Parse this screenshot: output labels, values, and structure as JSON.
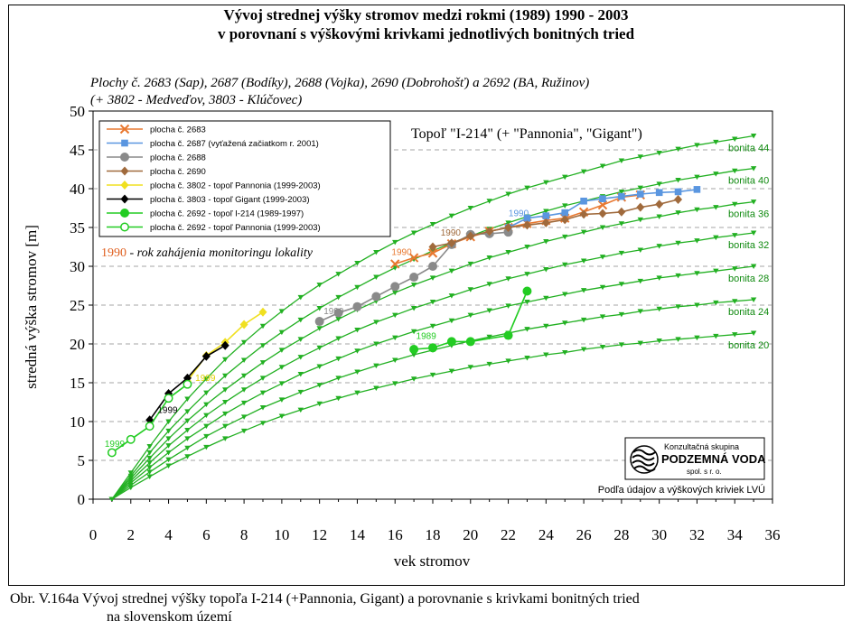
{
  "title_lines": [
    "Vývoj strednej výšky stromov medzi rokmi (1989) 1990 - 2003",
    "v porovnaní s výškovými krivkami jednotlivých bonitných tried"
  ],
  "subtitle_lines": [
    "Plochy č. 2683 (Sap), 2687 (Bodíky), 2688 (Vojka), 2690 (Dobrohošť) a 2692 (BA, Ružinov)",
    "(+  3802 - Medveďov, 3803 - Klúčovec)"
  ],
  "inner_title": "Topoľ \"I-214\" (+ \"Pannonia\", \"Gigant\")",
  "monitoring_note": {
    "year": "1990",
    "text": " - rok zahájenia monitoringu lokality"
  },
  "logo": {
    "line1": "Konzultačná skupina",
    "line2": "PODZEMNÁ VODA",
    "line3": "spol. s r. o."
  },
  "source_note": "Podľa údajov a výškových kriviek LVÚ",
  "caption_lines": [
    "Obr. V.164a Vývoj strednej výšky topoľa I-214 (+Pannonia, Gigant) a porovnanie s krivkami bonitných tried",
    "na slovenskom území"
  ],
  "chart_data": {
    "type": "line",
    "xlabel": "vek stromov",
    "ylabel": "stredná výška stromov [m]",
    "xlim": [
      0,
      36
    ],
    "ylim": [
      0,
      50
    ],
    "xticks": [
      0,
      2,
      4,
      6,
      8,
      10,
      12,
      14,
      16,
      18,
      20,
      22,
      24,
      26,
      28,
      30,
      32,
      34,
      36
    ],
    "yticks": [
      0,
      5,
      10,
      15,
      20,
      25,
      30,
      35,
      40,
      45,
      50
    ],
    "grid": "horizontal dashed",
    "legend_position": "top-left",
    "bonity_curves": [
      {
        "name": "bonita 44",
        "color": "#22b022",
        "x": [
          1,
          2,
          3,
          4,
          5,
          6,
          7,
          8,
          9,
          10,
          11,
          12,
          13,
          14,
          15,
          16,
          17,
          18,
          19,
          20,
          21,
          22,
          23,
          24,
          25,
          26,
          27,
          28,
          29,
          30,
          31,
          32,
          33,
          34,
          35
        ],
        "y": [
          0,
          3.4,
          6.8,
          10,
          12.9,
          15.5,
          18,
          20.2,
          22.3,
          24.2,
          26,
          27.6,
          29,
          30.4,
          31.8,
          33.1,
          34.3,
          35.4,
          36.5,
          37.5,
          38.4,
          39.3,
          40.1,
          40.8,
          41.5,
          42.2,
          42.9,
          43.6,
          44.1,
          44.6,
          45.1,
          45.6,
          46,
          46.4,
          46.8
        ]
      },
      {
        "name": "bonita 40",
        "color": "#22b022",
        "x": [
          1,
          2,
          3,
          4,
          5,
          6,
          7,
          8,
          9,
          10,
          11,
          12,
          13,
          14,
          15,
          16,
          17,
          18,
          19,
          20,
          21,
          22,
          23,
          24,
          25,
          26,
          27,
          28,
          29,
          30,
          31,
          32,
          33,
          34,
          35
        ],
        "y": [
          0,
          3,
          6,
          8.8,
          11.3,
          13.7,
          15.9,
          17.9,
          19.8,
          21.5,
          23.1,
          24.6,
          26,
          27.3,
          28.6,
          29.8,
          30.9,
          32,
          33,
          33.9,
          34.8,
          35.6,
          36.4,
          37.1,
          37.8,
          38.4,
          39,
          39.6,
          40.1,
          40.6,
          41.1,
          41.5,
          41.9,
          42.3,
          42.6
        ]
      },
      {
        "name": "bonita 36",
        "color": "#22b022",
        "x": [
          1,
          2,
          3,
          4,
          5,
          6,
          7,
          8,
          9,
          10,
          11,
          12,
          13,
          14,
          15,
          16,
          17,
          18,
          19,
          20,
          21,
          22,
          23,
          24,
          25,
          26,
          27,
          28,
          29,
          30,
          31,
          32,
          33,
          34,
          35
        ],
        "y": [
          0,
          2.7,
          5.3,
          7.8,
          10.1,
          12.2,
          14.1,
          15.9,
          17.6,
          19.2,
          20.6,
          22,
          23.2,
          24.4,
          25.5,
          26.6,
          27.6,
          28.5,
          29.4,
          30.3,
          31.1,
          31.8,
          32.5,
          33.2,
          33.8,
          34.4,
          35,
          35.5,
          36,
          36.4,
          36.9,
          37.3,
          37.6,
          38,
          38.3
        ]
      },
      {
        "name": "bonita 32",
        "color": "#22b022",
        "x": [
          1,
          2,
          3,
          4,
          5,
          6,
          7,
          8,
          9,
          10,
          11,
          12,
          13,
          14,
          15,
          16,
          17,
          18,
          19,
          20,
          21,
          22,
          23,
          24,
          25,
          26,
          27,
          28,
          29,
          30,
          31,
          32,
          33,
          34,
          35
        ],
        "y": [
          0,
          2.4,
          4.7,
          6.9,
          8.9,
          10.8,
          12.5,
          14.1,
          15.6,
          17,
          18.3,
          19.5,
          20.7,
          21.8,
          22.8,
          23.7,
          24.6,
          25.4,
          26.2,
          27,
          27.7,
          28.4,
          29,
          29.6,
          30.2,
          30.7,
          31.2,
          31.7,
          32.1,
          32.6,
          33,
          33.3,
          33.7,
          34,
          34.3
        ]
      },
      {
        "name": "bonita 28",
        "color": "#22b022",
        "x": [
          1,
          2,
          3,
          4,
          5,
          6,
          7,
          8,
          9,
          10,
          11,
          12,
          13,
          14,
          15,
          16,
          17,
          18,
          19,
          20,
          21,
          22,
          23,
          24,
          25,
          26,
          27,
          28,
          29,
          30,
          31,
          32,
          33,
          34,
          35
        ],
        "y": [
          0,
          2.1,
          4.1,
          6,
          7.8,
          9.4,
          11,
          12.4,
          13.7,
          14.9,
          16.1,
          17.1,
          18.1,
          19.1,
          20,
          20.8,
          21.6,
          22.3,
          23,
          23.7,
          24.3,
          24.9,
          25.4,
          25.9,
          26.4,
          26.9,
          27.3,
          27.7,
          28.1,
          28.5,
          28.8,
          29.1,
          29.4,
          29.7,
          30
        ]
      },
      {
        "name": "bonita 24",
        "color": "#22b022",
        "x": [
          1,
          2,
          3,
          4,
          5,
          6,
          7,
          8,
          9,
          10,
          11,
          12,
          13,
          14,
          15,
          16,
          17,
          18,
          19,
          20,
          21,
          22,
          23,
          24,
          25,
          26,
          27,
          28,
          29,
          30,
          31,
          32,
          33,
          34,
          35
        ],
        "y": [
          0,
          1.8,
          3.5,
          5.1,
          6.6,
          8.1,
          9.4,
          10.6,
          11.8,
          12.8,
          13.8,
          14.7,
          15.6,
          16.4,
          17.2,
          17.9,
          18.6,
          19.2,
          19.8,
          20.4,
          20.9,
          21.4,
          21.9,
          22.3,
          22.7,
          23.1,
          23.5,
          23.8,
          24.2,
          24.5,
          24.8,
          25,
          25.3,
          25.5,
          25.7
        ]
      },
      {
        "name": "bonita 20",
        "color": "#22b022",
        "x": [
          1,
          2,
          3,
          4,
          5,
          6,
          7,
          8,
          9,
          10,
          11,
          12,
          13,
          14,
          15,
          16,
          17,
          18,
          19,
          20,
          21,
          22,
          23,
          24,
          25,
          26,
          27,
          28,
          29,
          30,
          31,
          32,
          33,
          34,
          35
        ],
        "y": [
          0,
          1.5,
          2.9,
          4.3,
          5.5,
          6.7,
          7.8,
          8.8,
          9.8,
          10.7,
          11.5,
          12.3,
          13,
          13.7,
          14.3,
          14.9,
          15.5,
          16,
          16.5,
          17,
          17.4,
          17.8,
          18.2,
          18.6,
          18.9,
          19.3,
          19.6,
          19.9,
          20.1,
          20.4,
          20.6,
          20.8,
          21,
          21.2,
          21.4
        ]
      }
    ],
    "series": [
      {
        "name": "plocha č. 2683",
        "color": "#e87830",
        "marker": "x",
        "x": [
          16,
          17,
          18,
          19,
          20,
          21,
          22,
          23,
          24,
          25,
          26,
          27,
          28,
          29
        ],
        "y": [
          30.3,
          31.1,
          31.7,
          32.9,
          33.8,
          34.5,
          35,
          35.5,
          35.9,
          36.2,
          37,
          37.9,
          38.9,
          39.2
        ]
      },
      {
        "name": "plocha č. 2687 (vyťažená začiatkom r. 2001)",
        "color": "#5a96e0",
        "marker": "square",
        "x": [
          22,
          23,
          24,
          25,
          26,
          27,
          28,
          29,
          30,
          31,
          32
        ],
        "y": [
          35,
          36.2,
          36.5,
          36.9,
          38.4,
          38.7,
          39,
          39.3,
          39.5,
          39.6,
          39.9
        ]
      },
      {
        "name": "plocha č. 2688",
        "color": "#8a8a8a",
        "marker": "circle",
        "x": [
          12,
          13,
          14,
          15,
          16,
          17,
          18,
          19,
          20,
          21,
          22
        ],
        "y": [
          22.9,
          24,
          24.8,
          26.1,
          27.4,
          28.6,
          30,
          32.8,
          34.1,
          34.2,
          34.4
        ]
      },
      {
        "name": "plocha č. 2690",
        "color": "#a06a3c",
        "marker": "diamond",
        "x": [
          18,
          19,
          20,
          21,
          22,
          23,
          24,
          25,
          26,
          27,
          28,
          29,
          30,
          31
        ],
        "y": [
          32.5,
          33,
          33.9,
          34.5,
          35,
          35.3,
          35.6,
          36,
          36.7,
          36.8,
          37,
          37.6,
          38,
          38.6
        ]
      },
      {
        "name": "plocha č. 3802 - topoľ Pannonia (1999-2003)",
        "color": "#f0e020",
        "marker": "diamond",
        "x": [
          5,
          6,
          7,
          8,
          9
        ],
        "y": [
          15.2,
          18.5,
          20.2,
          22.5,
          24.1
        ]
      },
      {
        "name": "plocha č. 3803 - topoľ Gigant (1999-2003)",
        "color": "#000000",
        "marker": "diamond",
        "x": [
          3,
          4,
          5,
          6,
          7
        ],
        "y": [
          10.2,
          13.6,
          15.6,
          18.4,
          19.8
        ]
      },
      {
        "name": "plocha č. 2692 - topoľ I-214 (1989-1997)",
        "color": "#22cc22",
        "marker": "circle",
        "x": [
          17,
          18,
          19,
          20,
          22,
          23
        ],
        "y": [
          19.3,
          19.5,
          20.3,
          20.3,
          21.1,
          26.8
        ]
      },
      {
        "name": "plocha č. 2692 - topoľ Pannonia (1999-2003)",
        "color": "#22cc22",
        "marker": "circle-open",
        "x": [
          1,
          2,
          3,
          4,
          5
        ],
        "y": [
          6,
          7.7,
          9.4,
          13,
          14.8
        ]
      }
    ],
    "annotations": [
      {
        "text": "1990",
        "x": 16.2,
        "y": 31.2,
        "color": "#e87830"
      },
      {
        "text": "1990",
        "x": 22.4,
        "y": 36.2,
        "color": "#5a96e0"
      },
      {
        "text": "1990",
        "x": 12.6,
        "y": 23.6,
        "color": "#8a8a8a"
      },
      {
        "text": "1990",
        "x": 18.8,
        "y": 33.7,
        "color": "#a06a3c"
      },
      {
        "text": "1999",
        "x": 5.8,
        "y": 15.0,
        "color": "#e0d000"
      },
      {
        "text": "1999",
        "x": 3.8,
        "y": 10.9,
        "color": "#000000"
      },
      {
        "text": "1989",
        "x": 17.5,
        "y": 20.4,
        "color": "#22cc22"
      },
      {
        "text": "1999",
        "x": 1.0,
        "y": 6.5,
        "color": "#22cc22"
      }
    ]
  }
}
